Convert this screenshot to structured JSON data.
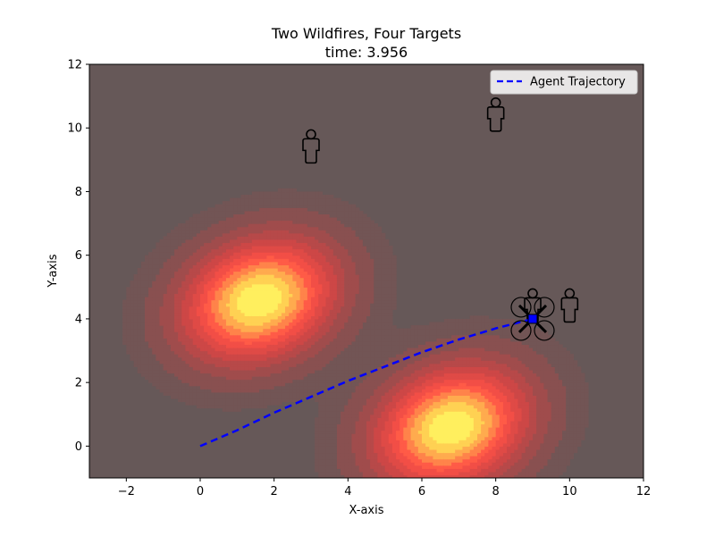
{
  "chart_data": {
    "type": "heatmap",
    "title": "Two Wildfires, Four Targets",
    "subtitle": "time: 3.956",
    "xlabel": "X-axis",
    "ylabel": "Y-axis",
    "xlim": [
      -3,
      12
    ],
    "ylim": [
      -1,
      12
    ],
    "xticks": [
      -2,
      0,
      2,
      4,
      6,
      8,
      10,
      12
    ],
    "yticks": [
      0,
      2,
      4,
      6,
      8,
      10,
      12
    ],
    "xtick_labels": [
      "−2",
      "0",
      "2",
      "4",
      "6",
      "8",
      "10",
      "12"
    ],
    "ytick_labels": [
      "0",
      "2",
      "4",
      "6",
      "8",
      "10",
      "12"
    ],
    "grid": false,
    "legend": {
      "placement": "top-right",
      "entries": [
        "Agent Trajectory"
      ]
    },
    "wildfires": [
      {
        "center": [
          1.6,
          4.6
        ],
        "sigma_x": 1.5,
        "sigma_y": 1.2,
        "rotation_deg": 35
      },
      {
        "center": [
          6.8,
          0.6
        ],
        "sigma_x": 1.5,
        "sigma_y": 1.2,
        "rotation_deg": 35
      }
    ],
    "targets": [
      [
        3,
        9.35
      ],
      [
        8,
        10.35
      ],
      [
        9,
        4.35
      ],
      [
        10,
        4.35
      ]
    ],
    "agent_position": [
      9.0,
      4.0
    ],
    "trajectory": {
      "name": "Agent Trajectory",
      "x": [
        0,
        1,
        2,
        3,
        4,
        5,
        6,
        7,
        8,
        9
      ],
      "y": [
        0,
        0.5,
        1.05,
        1.55,
        2.05,
        2.5,
        2.95,
        3.35,
        3.7,
        4.0
      ]
    },
    "colors": {
      "background": "#665858",
      "trajectory": "#0000ff",
      "fire_low": "#7a5454",
      "fire_mid": "#ff4444",
      "fire_high": "#ffff55"
    }
  }
}
